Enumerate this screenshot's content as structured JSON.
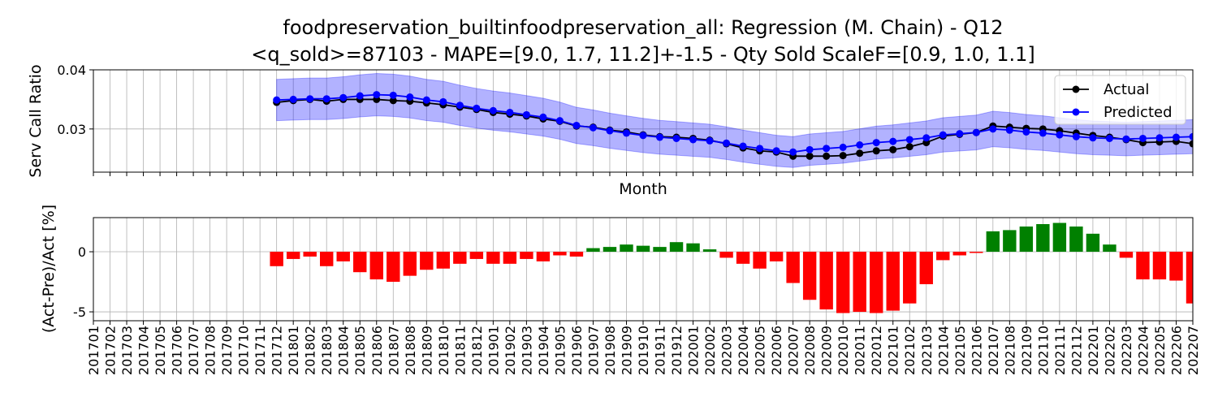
{
  "chart_data": [
    {
      "type": "line",
      "title": [
        "foodpreservation_builtinfoodpreservation_all: Regression (M. Chain) - Q12",
        "<q_sold>=87103 - MAPE=[9.0, 1.7, 11.2]+-1.5 - Qty Sold ScaleF=[0.9, 1.0, 1.1]"
      ],
      "xlabel": "Month",
      "ylabel": "Serv Call Ratio",
      "ylim": [
        0.0227,
        0.04
      ],
      "yticks": [
        0.03,
        0.04
      ],
      "grid": true,
      "legend": "upper right",
      "series": [
        {
          "name": "Actual",
          "color": "#000000",
          "values": [
            null,
            null,
            null,
            null,
            null,
            null,
            null,
            null,
            null,
            null,
            null,
            0.0345,
            0.0348,
            0.035,
            0.0347,
            0.035,
            0.035,
            0.035,
            0.0348,
            0.0347,
            0.0344,
            0.0341,
            0.0337,
            0.0333,
            0.0328,
            0.0325,
            0.0322,
            0.0317,
            0.0313,
            0.0305,
            0.0303,
            0.0298,
            0.0295,
            0.029,
            0.0287,
            0.0286,
            0.0284,
            0.0281,
            0.0275,
            0.0268,
            0.0263,
            0.0261,
            0.0254,
            0.0254,
            0.0254,
            0.0255,
            0.0259,
            0.0263,
            0.0265,
            0.027,
            0.0277,
            0.0288,
            0.0291,
            0.0294,
            0.0305,
            0.0303,
            0.0301,
            0.03,
            0.0297,
            0.0293,
            0.0289,
            0.0286,
            0.0282,
            0.0277,
            0.0278,
            0.0279,
            0.0275
          ]
        },
        {
          "name": "Predicted",
          "color": "#0000ff",
          "values": [
            null,
            null,
            null,
            null,
            null,
            null,
            null,
            null,
            null,
            null,
            null,
            0.0349,
            0.035,
            0.0351,
            0.0351,
            0.0353,
            0.0356,
            0.0358,
            0.0357,
            0.0354,
            0.0349,
            0.0346,
            0.034,
            0.0335,
            0.0331,
            0.0328,
            0.0324,
            0.032,
            0.0314,
            0.0306,
            0.0302,
            0.0297,
            0.0293,
            0.0289,
            0.0286,
            0.0284,
            0.0282,
            0.028,
            0.0276,
            0.0271,
            0.0267,
            0.0263,
            0.0261,
            0.0265,
            0.0267,
            0.0269,
            0.0273,
            0.0277,
            0.0279,
            0.0282,
            0.0285,
            0.029,
            0.0292,
            0.0294,
            0.03,
            0.0298,
            0.0295,
            0.0293,
            0.029,
            0.0287,
            0.0285,
            0.0284,
            0.0283,
            0.0284,
            0.0285,
            0.0286,
            0.0287
          ]
        }
      ],
      "band": {
        "color": "#0000ff",
        "lower": [
          null,
          null,
          null,
          null,
          null,
          null,
          null,
          null,
          null,
          null,
          null,
          0.03141,
          0.0315,
          0.03159,
          0.03159,
          0.03177,
          0.03204,
          0.03222,
          0.03213,
          0.03186,
          0.03141,
          0.03114,
          0.0306,
          0.03015,
          0.02979,
          0.02952,
          0.02916,
          0.0288,
          0.02826,
          0.02754,
          0.02718,
          0.02673,
          0.02637,
          0.02601,
          0.02574,
          0.02556,
          0.02538,
          0.0252,
          0.02484,
          0.02439,
          0.02403,
          0.02367,
          0.02349,
          0.02385,
          0.02403,
          0.02421,
          0.02457,
          0.02493,
          0.02511,
          0.02538,
          0.02565,
          0.0261,
          0.02628,
          0.02646,
          0.027,
          0.02682,
          0.02655,
          0.02637,
          0.0261,
          0.02583,
          0.02565,
          0.02556,
          0.02547,
          0.02556,
          0.02565,
          0.02574,
          0.02583
        ],
        "upper": [
          null,
          null,
          null,
          null,
          null,
          null,
          null,
          null,
          null,
          null,
          null,
          0.03839,
          0.0385,
          0.03861,
          0.03861,
          0.03883,
          0.03916,
          0.03938,
          0.03927,
          0.03894,
          0.03839,
          0.03806,
          0.0374,
          0.03685,
          0.03641,
          0.03608,
          0.03564,
          0.0352,
          0.03454,
          0.03366,
          0.03322,
          0.03267,
          0.03223,
          0.03179,
          0.03146,
          0.03124,
          0.03102,
          0.0308,
          0.03036,
          0.02981,
          0.02937,
          0.02893,
          0.02871,
          0.02915,
          0.02937,
          0.02959,
          0.03003,
          0.03047,
          0.03069,
          0.03102,
          0.03135,
          0.0319,
          0.03212,
          0.03234,
          0.033,
          0.03278,
          0.03245,
          0.03223,
          0.0319,
          0.03157,
          0.03135,
          0.03124,
          0.03113,
          0.03124,
          0.03135,
          0.03146,
          0.03157
        ]
      }
    },
    {
      "type": "bar",
      "ylabel": "(Act-Pre)/Act [%]",
      "ylim": [
        -5.74,
        2.84
      ],
      "yticks": [
        -5,
        0
      ],
      "grid": true,
      "colors": {
        "positive": "#008000",
        "negative": "#ff0000"
      },
      "categories": [
        "201701",
        "201702",
        "201703",
        "201704",
        "201705",
        "201706",
        "201707",
        "201708",
        "201709",
        "201710",
        "201711",
        "201712",
        "201801",
        "201802",
        "201803",
        "201804",
        "201805",
        "201806",
        "201807",
        "201808",
        "201809",
        "201810",
        "201811",
        "201812",
        "201901",
        "201902",
        "201903",
        "201904",
        "201905",
        "201906",
        "201907",
        "201908",
        "201909",
        "201910",
        "201911",
        "201912",
        "202001",
        "202002",
        "202003",
        "202004",
        "202005",
        "202006",
        "202007",
        "202008",
        "202009",
        "202010",
        "202011",
        "202012",
        "202101",
        "202102",
        "202103",
        "202104",
        "202105",
        "202106",
        "202107",
        "202108",
        "202109",
        "202110",
        "202111",
        "202112",
        "202201",
        "202202",
        "202203",
        "202204",
        "202205",
        "202206",
        "202207"
      ],
      "values": [
        null,
        null,
        null,
        null,
        null,
        null,
        null,
        null,
        null,
        null,
        null,
        -1.2,
        -0.6,
        -0.4,
        -1.2,
        -0.8,
        -1.7,
        -2.3,
        -2.5,
        -2.0,
        -1.5,
        -1.4,
        -1.0,
        -0.6,
        -1.0,
        -1.0,
        -0.6,
        -0.8,
        -0.3,
        -0.4,
        0.3,
        0.4,
        0.6,
        0.5,
        0.4,
        0.8,
        0.7,
        0.2,
        -0.5,
        -1.0,
        -1.4,
        -0.8,
        -2.6,
        -4.0,
        -4.8,
        -5.1,
        -5.0,
        -5.1,
        -4.9,
        -4.3,
        -2.7,
        -0.7,
        -0.3,
        -0.1,
        1.7,
        1.8,
        2.1,
        2.3,
        2.4,
        2.1,
        1.5,
        0.6,
        -0.5,
        -2.3,
        -2.3,
        -2.4,
        -4.3
      ]
    }
  ]
}
